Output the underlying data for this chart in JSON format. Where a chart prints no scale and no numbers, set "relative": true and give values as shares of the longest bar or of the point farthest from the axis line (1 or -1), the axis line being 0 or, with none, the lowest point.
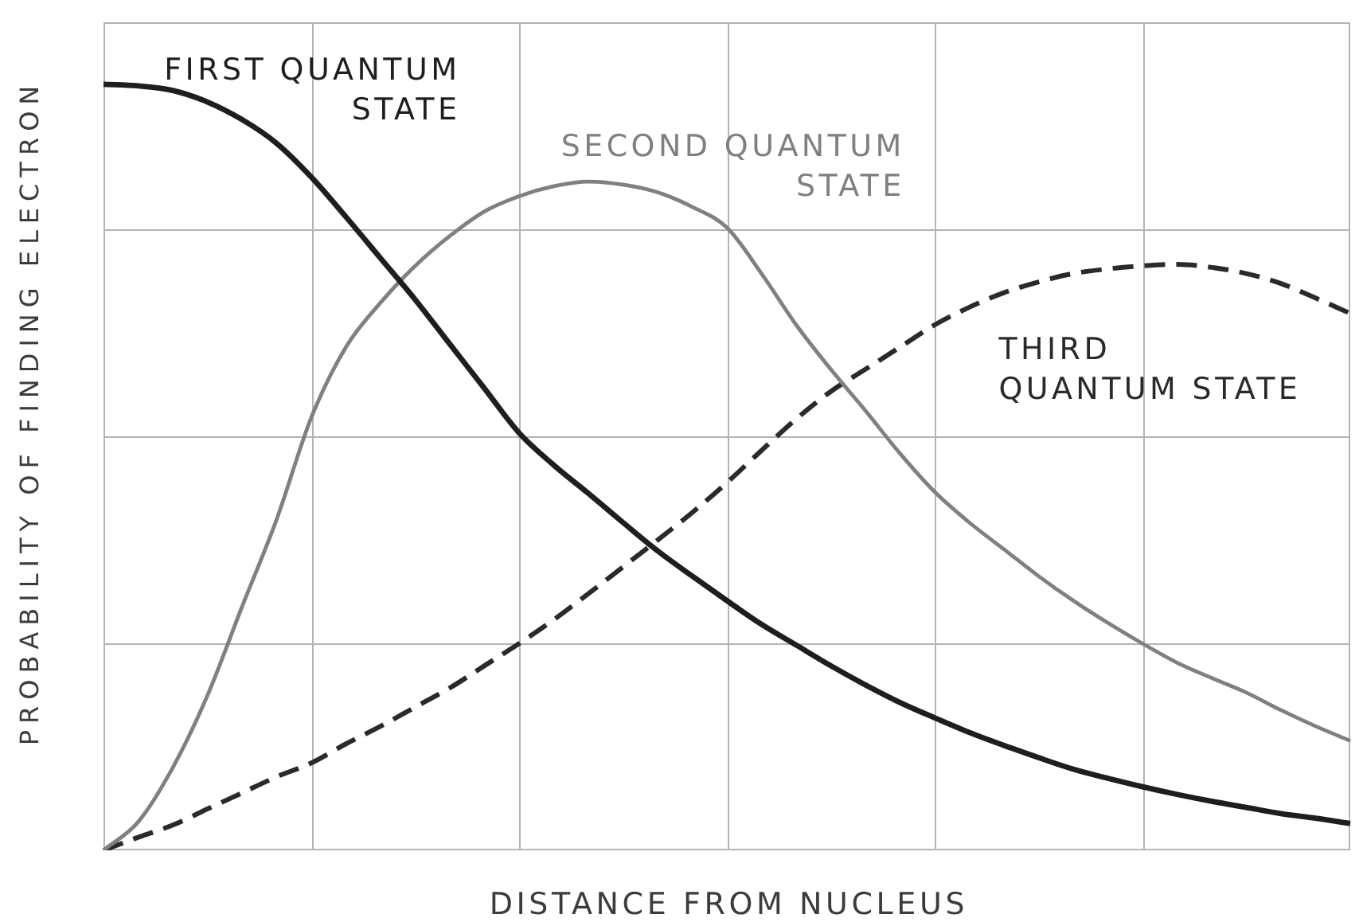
{
  "chart_data": {
    "type": "line",
    "xlabel": "DISTANCE FROM NUCLEUS",
    "ylabel": "PROBABILITY OF FINDING ELECTRON",
    "relative": true,
    "grid": true,
    "marker": "none",
    "categories": [
      null,
      null,
      null,
      null,
      null,
      null,
      null,
      null,
      null,
      null,
      null,
      null,
      null,
      null,
      null,
      null,
      null,
      null,
      null,
      null,
      null,
      null,
      null,
      null,
      null,
      null,
      null,
      null,
      null,
      null,
      null,
      null,
      null,
      null,
      null,
      null,
      null
    ],
    "series": [
      {
        "name": "FIRST QUANTUM STATE",
        "color": "#1e1e1e",
        "line_style": "solid",
        "values": [
          1.0,
          0.998,
          0.992,
          0.977,
          0.954,
          0.923,
          0.879,
          0.827,
          0.773,
          0.719,
          0.661,
          0.603,
          0.545,
          0.503,
          0.466,
          0.428,
          0.391,
          0.358,
          0.326,
          0.295,
          0.268,
          0.241,
          0.216,
          0.193,
          0.173,
          0.154,
          0.137,
          0.121,
          0.106,
          0.094,
          0.083,
          0.073,
          0.064,
          0.056,
          0.048,
          0.042,
          0.035
        ]
      },
      {
        "name": "SECOND QUANTUM STATE",
        "color": "#808080",
        "line_style": "solid",
        "values": [
          0,
          0.037,
          0.108,
          0.202,
          0.318,
          0.432,
          0.565,
          0.657,
          0.715,
          0.763,
          0.802,
          0.834,
          0.854,
          0.867,
          0.873,
          0.869,
          0.859,
          0.84,
          0.813,
          0.753,
          0.686,
          0.628,
          0.574,
          0.518,
          0.468,
          0.428,
          0.393,
          0.358,
          0.326,
          0.297,
          0.27,
          0.245,
          0.225,
          0.206,
          0.183,
          0.162,
          0.143
        ]
      },
      {
        "name": "THIRD QUANTUM STATE",
        "color": "#2a2a2a",
        "line_style": "dashed",
        "values": [
          0,
          0.017,
          0.033,
          0.054,
          0.075,
          0.096,
          0.114,
          0.139,
          0.162,
          0.187,
          0.212,
          0.241,
          0.27,
          0.301,
          0.335,
          0.37,
          0.405,
          0.441,
          0.48,
          0.522,
          0.563,
          0.599,
          0.628,
          0.657,
          0.686,
          0.709,
          0.728,
          0.742,
          0.753,
          0.759,
          0.763,
          0.765,
          0.761,
          0.753,
          0.74,
          0.721,
          0.701
        ]
      }
    ]
  }
}
